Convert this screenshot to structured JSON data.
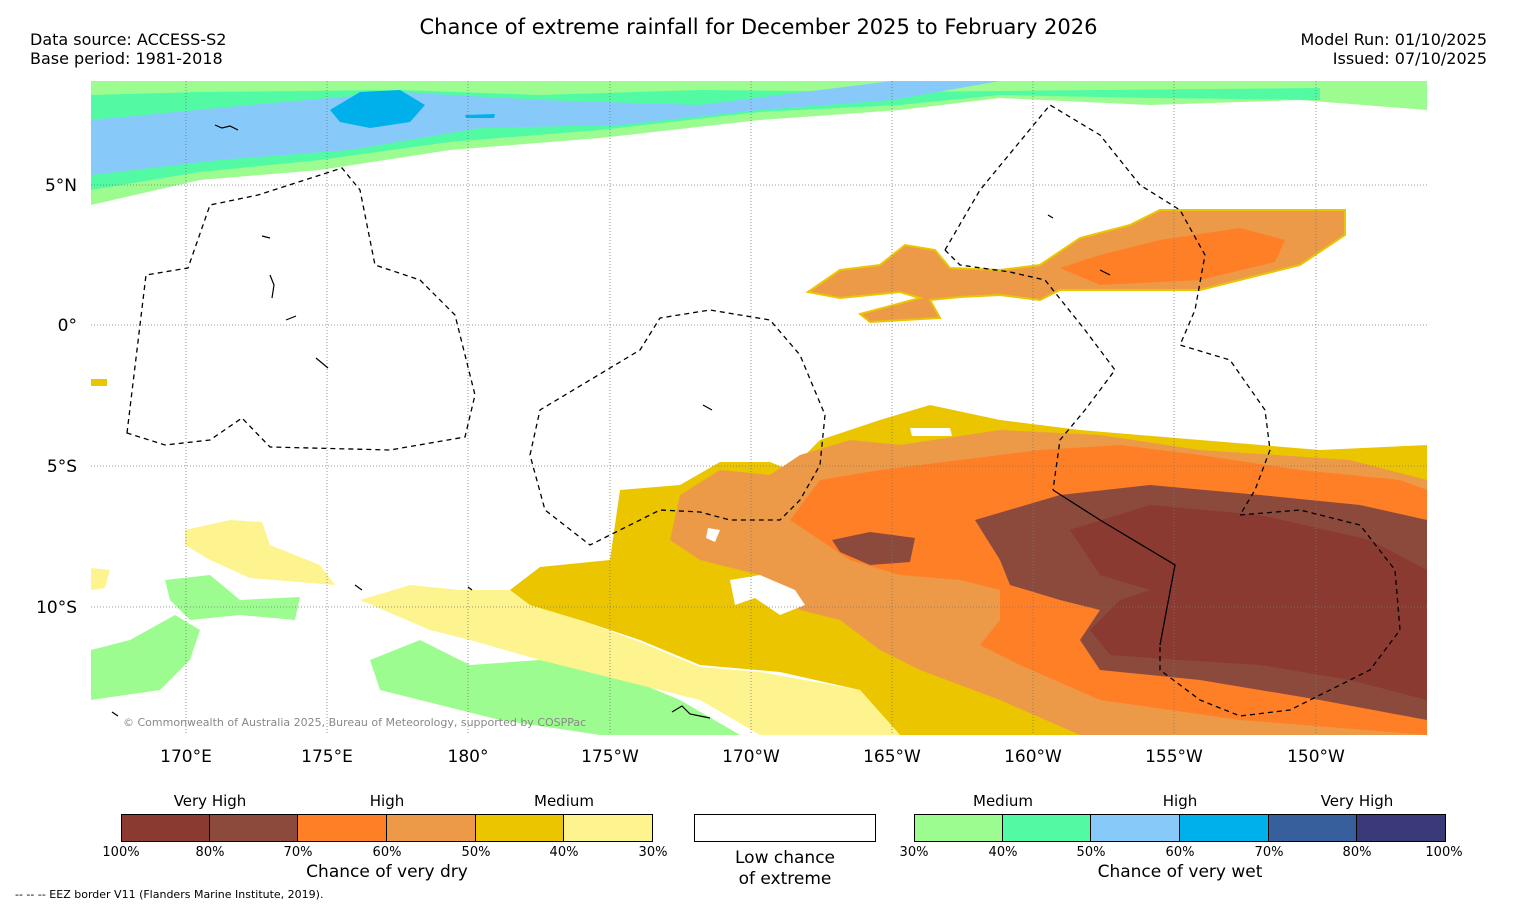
{
  "title": "Chance of extreme rainfall for December 2025 to February 2026",
  "meta_left": {
    "source": "Data source: ACCESS-S2",
    "base": "Base period: 1981-2018"
  },
  "meta_right": {
    "model_run": "Model Run: 01/10/2025",
    "issued": "Issued: 07/10/2025"
  },
  "map": {
    "lat_labels": [
      "5°N",
      "0°",
      "5°S",
      "10°S"
    ],
    "lon_labels": [
      "170°E",
      "175°E",
      "180°",
      "175°W",
      "170°W",
      "165°W",
      "160°W",
      "155°W",
      "150°W"
    ],
    "copyright": "© Commonwealth of Australia 2025, Bureau of Meteorology, supported by COSPPac"
  },
  "legend_dry": {
    "categories": [
      "Very High",
      "High",
      "Medium"
    ],
    "ticks": [
      "100%",
      "80%",
      "70%",
      "60%",
      "50%",
      "40%",
      "30%"
    ],
    "title": "Chance of very dry",
    "colors": [
      "#8b3a32",
      "#8b4a3c",
      "#ff7f27",
      "#ec9a48",
      "#ebc500",
      "#fdf48f"
    ]
  },
  "legend_low": {
    "line1": "Low chance",
    "line2": "of extreme"
  },
  "legend_wet": {
    "categories": [
      "Medium",
      "High",
      "Very High"
    ],
    "ticks": [
      "30%",
      "40%",
      "50%",
      "60%",
      "70%",
      "80%",
      "100%"
    ],
    "title": "Chance of very wet",
    "colors": [
      "#9dfc8f",
      "#52fba3",
      "#87cafa",
      "#00b0eb",
      "#375f9b",
      "#3b3a78"
    ]
  },
  "footer": "--  --  -- EEZ border V11 (Flanders Marine Institute, 2019)."
}
